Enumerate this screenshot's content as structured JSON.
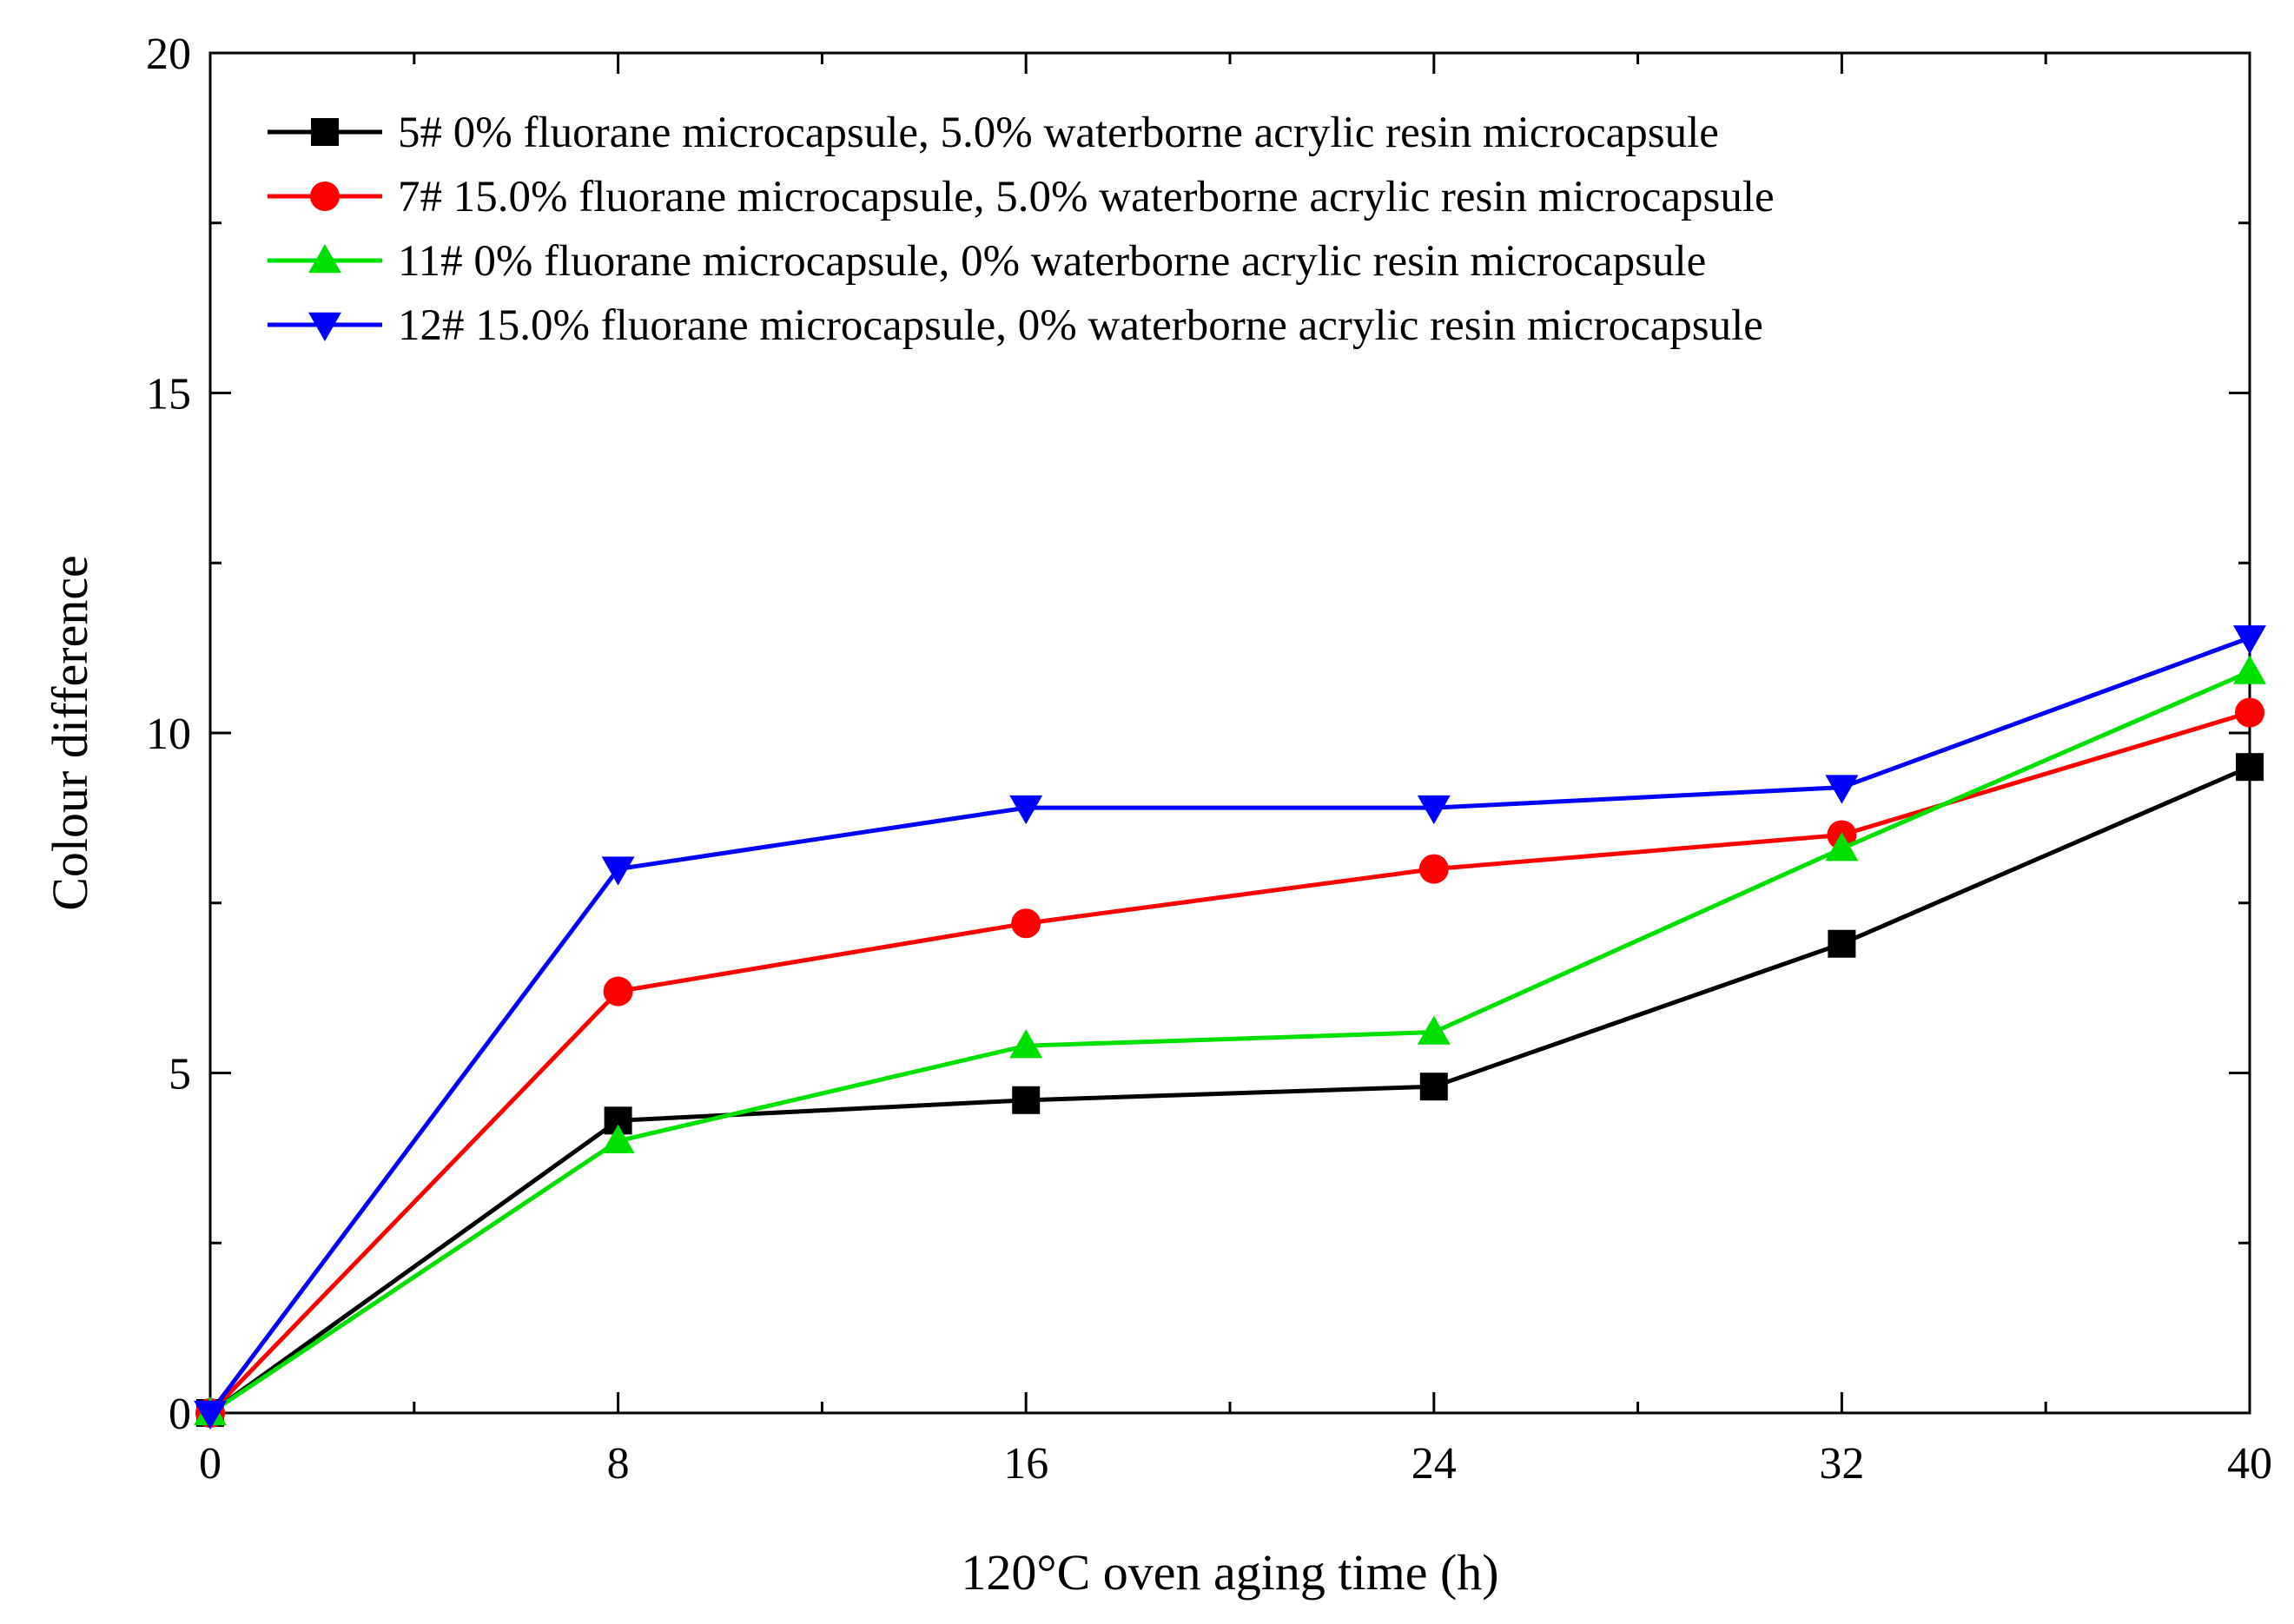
{
  "chart_data": {
    "type": "line",
    "title": "",
    "xlabel": "120°C oven aging time  (h)",
    "ylabel": "Colour difference",
    "xlim": [
      0,
      40
    ],
    "ylim": [
      0,
      20
    ],
    "x_ticks": [
      0,
      8,
      16,
      24,
      32,
      40
    ],
    "x_tick_labels": [
      "0",
      "8",
      "16",
      "24",
      "32",
      "40"
    ],
    "y_ticks": [
      0,
      5,
      10,
      15,
      20
    ],
    "y_tick_labels": [
      "0",
      "5",
      "10",
      "15",
      "20"
    ],
    "grid": false,
    "legend_position": "top-left",
    "x": [
      0,
      8,
      16,
      24,
      32,
      40
    ],
    "series": [
      {
        "name": "5# 0% fluorane microcapsule, 5.0% waterborne acrylic resin microcapsule",
        "color": "#000000",
        "marker": "square",
        "values": [
          0,
          4.3,
          4.6,
          4.8,
          6.9,
          9.5
        ]
      },
      {
        "name": "7# 15.0% fluorane microcapsule, 5.0% waterborne acrylic resin microcapsule",
        "color": "#ff0000",
        "marker": "circle",
        "values": [
          0,
          6.2,
          7.2,
          8.0,
          8.5,
          10.3
        ]
      },
      {
        "name": "11# 0% fluorane microcapsule, 0% waterborne acrylic resin microcapsule",
        "color": "#00e000",
        "marker": "triangle-up",
        "values": [
          0,
          4.0,
          5.4,
          5.6,
          8.3,
          10.9
        ]
      },
      {
        "name": "12# 15.0% fluorane microcapsule, 0% waterborne acrylic resin microcapsule",
        "color": "#0000ff",
        "marker": "triangle-down",
        "values": [
          0,
          8.0,
          8.9,
          8.9,
          9.2,
          11.4
        ]
      }
    ]
  }
}
